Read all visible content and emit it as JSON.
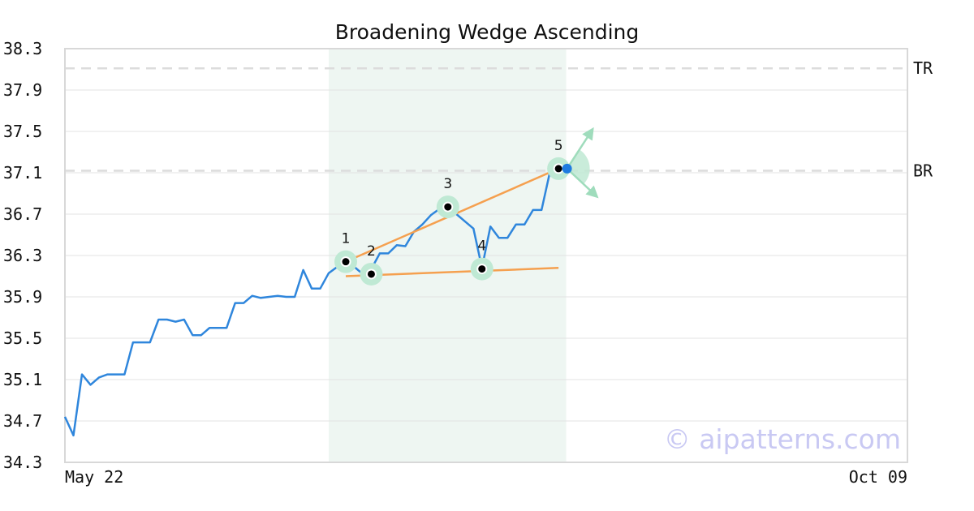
{
  "chart_data": {
    "type": "line",
    "title": "Broadening Wedge Ascending",
    "xlabel": "",
    "ylabel": "",
    "x_tick_labels": [
      "May 22",
      "Oct 09"
    ],
    "y_ticks": [
      "34.3",
      "34.7",
      "35.1",
      "35.5",
      "35.9",
      "36.3",
      "36.7",
      "37.1",
      "37.5",
      "37.9",
      "38.3"
    ],
    "ylim": [
      34.3,
      38.3
    ],
    "n_points": 100,
    "grid": "horizontal",
    "series": [
      {
        "color": "#2f86dc",
        "values": [
          34.74,
          34.56,
          35.15,
          35.05,
          35.12,
          35.15,
          35.15,
          35.15,
          35.46,
          35.46,
          35.46,
          35.68,
          35.68,
          35.66,
          35.68,
          35.53,
          35.53,
          35.6,
          35.6,
          35.6,
          35.84,
          35.84,
          35.91,
          35.89,
          35.9,
          35.91,
          35.9,
          35.9,
          36.16,
          35.98,
          35.98,
          36.13,
          36.19,
          36.17,
          36.19,
          36.12,
          36.17,
          36.32,
          36.32,
          36.4,
          36.39,
          36.53,
          36.6,
          36.69,
          36.75,
          36.74,
          36.7,
          36.63,
          36.56,
          36.18,
          36.58,
          36.47,
          36.47,
          36.6,
          36.6,
          36.74,
          36.74,
          37.11,
          37.14
        ]
      }
    ],
    "pattern": {
      "points": [
        {
          "label": "1",
          "x_index": 33,
          "value": 36.24
        },
        {
          "label": "2",
          "x_index": 36,
          "value": 36.12
        },
        {
          "label": "3",
          "x_index": 45,
          "value": 36.77
        },
        {
          "label": "4",
          "x_index": 49,
          "value": 36.17
        },
        {
          "label": "5",
          "x_index": 58,
          "value": 37.14
        }
      ],
      "upper_trendline": {
        "from": {
          "x_index": 33,
          "value": 36.24
        },
        "to": {
          "x_index": 58,
          "value": 37.14
        }
      },
      "lower_trendline": {
        "from": {
          "x_index": 33,
          "value": 36.1
        },
        "to": {
          "x_index": 58,
          "value": 36.18
        }
      },
      "shaded_region_x_index": [
        31,
        58.9
      ],
      "current_point": {
        "x_index": 59,
        "value": 37.14
      },
      "arrow_up_target": {
        "x_index": 62,
        "value": 37.52
      },
      "arrow_down_target": {
        "x_index": 62.5,
        "value": 36.87
      }
    },
    "reference_lines": [
      {
        "label": "TR",
        "value": 38.11
      },
      {
        "label": "BR",
        "value": 37.12
      }
    ],
    "colors": {
      "line": "#2f86dc",
      "trendline": "#f5a04f",
      "highlight": "#bfe9d4",
      "shade": "#eef6f2",
      "current_point": "#1f7be0",
      "arrow": "#9fdcbc"
    }
  },
  "watermark": "© aipatterns.com"
}
